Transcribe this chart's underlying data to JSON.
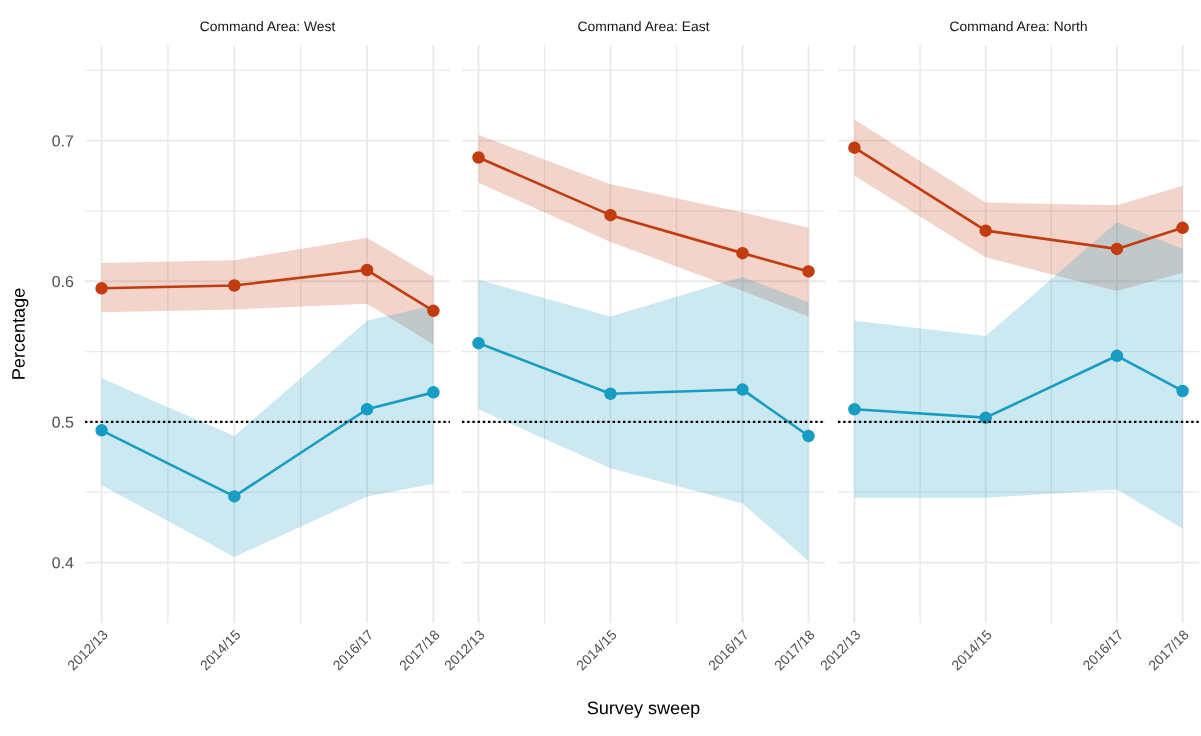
{
  "chart_data": [
    {
      "type": "line",
      "title": "Command Area: West",
      "ylabel": "Percentage",
      "categories": [
        "2012/13",
        null,
        "2014/15",
        null,
        "2016/17",
        "2017/18"
      ],
      "ylim": [
        0.357,
        0.768
      ],
      "yticks": [
        0.4,
        {
          "value": 0.45,
          "label": null
        },
        0.5,
        {
          "value": 0.55,
          "label": null
        },
        0.6,
        {
          "value": 0.65,
          "label": null
        },
        0.7,
        {
          "value": 0.75,
          "label": null
        }
      ],
      "grid": true,
      "marker": "circle",
      "line_style": "solid",
      "ref_lines": [
        {
          "axis": "y",
          "value": 0.5,
          "color": "#000000",
          "line_style": "dotted"
        }
      ],
      "series": [
        {
          "color": "#c23c10",
          "values": [
            0.595,
            null,
            0.597,
            null,
            0.608,
            0.579
          ],
          "lower": [
            0.578,
            null,
            0.58,
            null,
            0.584,
            0.555
          ],
          "upper": [
            0.613,
            null,
            0.615,
            null,
            0.631,
            0.603
          ]
        },
        {
          "color": "#179dc4",
          "values": [
            0.494,
            null,
            0.447,
            null,
            0.509,
            0.521
          ],
          "lower": [
            0.455,
            null,
            0.404,
            null,
            0.447,
            0.456
          ],
          "upper": [
            0.531,
            null,
            0.49,
            null,
            0.572,
            0.583
          ]
        }
      ]
    },
    {
      "type": "line",
      "title": "Command Area: East",
      "xlabel": "Survey sweep",
      "categories": [
        "2012/13",
        null,
        "2014/15",
        null,
        "2016/17",
        "2017/18"
      ],
      "ylim": [
        0.357,
        0.768
      ],
      "yticks": [
        0.4,
        {
          "value": 0.45,
          "label": null
        },
        0.5,
        {
          "value": 0.55,
          "label": null
        },
        0.6,
        {
          "value": 0.65,
          "label": null
        },
        0.7,
        {
          "value": 0.75,
          "label": null
        }
      ],
      "tick_labels": "x",
      "grid": true,
      "marker": "circle",
      "line_style": "solid",
      "ref_lines": [
        {
          "axis": "y",
          "value": 0.5,
          "color": "#000000",
          "line_style": "dotted"
        }
      ],
      "series": [
        {
          "color": "#c23c10",
          "values": [
            0.688,
            null,
            0.647,
            null,
            0.62,
            0.607
          ],
          "lower": [
            0.67,
            null,
            0.628,
            null,
            0.593,
            0.575
          ],
          "upper": [
            0.704,
            null,
            0.669,
            null,
            0.649,
            0.638
          ]
        },
        {
          "color": "#179dc4",
          "values": [
            0.556,
            null,
            0.52,
            null,
            0.523,
            0.49
          ],
          "lower": [
            0.509,
            null,
            0.467,
            null,
            0.442,
            0.401
          ],
          "upper": [
            0.601,
            null,
            0.575,
            null,
            0.603,
            0.585
          ]
        }
      ]
    },
    {
      "type": "line",
      "title": "Command Area: North",
      "categories": [
        "2012/13",
        null,
        "2014/15",
        null,
        "2016/17",
        "2017/18"
      ],
      "ylim": [
        0.357,
        0.768
      ],
      "yticks": [
        0.4,
        {
          "value": 0.45,
          "label": null
        },
        0.5,
        {
          "value": 0.55,
          "label": null
        },
        0.6,
        {
          "value": 0.65,
          "label": null
        },
        0.7,
        {
          "value": 0.75,
          "label": null
        }
      ],
      "tick_labels": "x",
      "grid": true,
      "marker": "circle",
      "line_style": "solid",
      "ref_lines": [
        {
          "axis": "y",
          "value": 0.5,
          "color": "#000000",
          "line_style": "dotted"
        }
      ],
      "series": [
        {
          "color": "#c23c10",
          "values": [
            0.695,
            null,
            0.636,
            null,
            0.623,
            0.638
          ],
          "lower": [
            0.675,
            null,
            0.617,
            null,
            0.593,
            0.606
          ],
          "upper": [
            0.715,
            null,
            0.656,
            null,
            0.654,
            0.668
          ]
        },
        {
          "color": "#179dc4",
          "values": [
            0.509,
            null,
            0.503,
            null,
            0.547,
            0.522
          ],
          "lower": [
            0.446,
            null,
            0.446,
            null,
            0.452,
            0.424
          ],
          "upper": [
            0.572,
            null,
            0.561,
            null,
            0.642,
            0.623
          ]
        }
      ]
    }
  ]
}
